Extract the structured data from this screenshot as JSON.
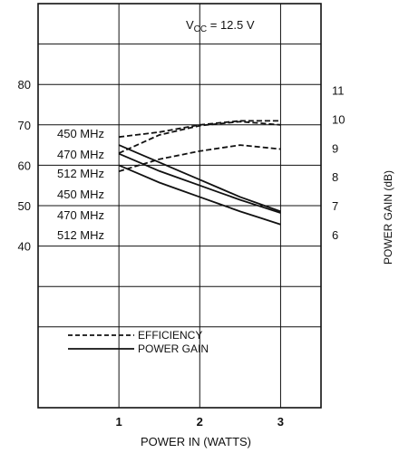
{
  "chart_data": {
    "type": "line",
    "annotation": {
      "prefix": "V",
      "subscript": "CC",
      "text": " = 12.5 V"
    },
    "xlabel": "POWER IN (WATTS)",
    "ylabel_right": "POWER GAIN (dB)",
    "xlim": [
      0,
      3.5
    ],
    "x_ticks": [
      "1",
      "2",
      "3"
    ],
    "y_left_lim": [
      0,
      100
    ],
    "y_left_ticks": [
      "40",
      "50",
      "60",
      "70",
      "80"
    ],
    "y_right_lim": [
      0,
      14
    ],
    "y_right_ticks": [
      "6",
      "7",
      "8",
      "9",
      "10",
      "11"
    ],
    "grid": true,
    "legend": [
      {
        "label": "EFFICIENCY",
        "style": "dashed"
      },
      {
        "label": "POWER GAIN",
        "style": "solid"
      }
    ],
    "series": [
      {
        "name": "450 MHz",
        "kind": "efficiency",
        "axis": "left",
        "x": [
          1,
          1.5,
          2,
          2.5,
          3
        ],
        "values": [
          67,
          68.2,
          70,
          71,
          71
        ]
      },
      {
        "name": "470 MHz",
        "kind": "efficiency",
        "axis": "left",
        "x": [
          1,
          1.5,
          2,
          2.5,
          3
        ],
        "values": [
          63,
          67.5,
          69.8,
          70.8,
          70
        ]
      },
      {
        "name": "512 MHz",
        "kind": "efficiency",
        "axis": "left",
        "x": [
          1,
          1.5,
          2,
          2.5,
          3
        ],
        "values": [
          58.5,
          61.5,
          63.5,
          65,
          64
        ]
      },
      {
        "name": "450 MHz",
        "kind": "gain",
        "axis": "right",
        "x": [
          1,
          1.5,
          2,
          2.5,
          3
        ],
        "values": [
          9.1,
          8.5,
          7.9,
          7.3,
          6.8
        ]
      },
      {
        "name": "470 MHz",
        "kind": "gain",
        "axis": "right",
        "x": [
          1,
          1.5,
          2,
          2.5,
          3
        ],
        "values": [
          8.8,
          8.2,
          7.7,
          7.2,
          6.75
        ]
      },
      {
        "name": "512 MHz",
        "kind": "gain",
        "axis": "right",
        "x": [
          1,
          1.5,
          2,
          2.5,
          3
        ],
        "values": [
          8.4,
          7.8,
          7.3,
          6.8,
          6.35
        ]
      }
    ],
    "curve_labels_efficiency": [
      "450 MHz",
      "470 MHz",
      "512 MHz"
    ],
    "curve_labels_gain": [
      "450 MHz",
      "470 MHz",
      "512 MHz"
    ]
  }
}
